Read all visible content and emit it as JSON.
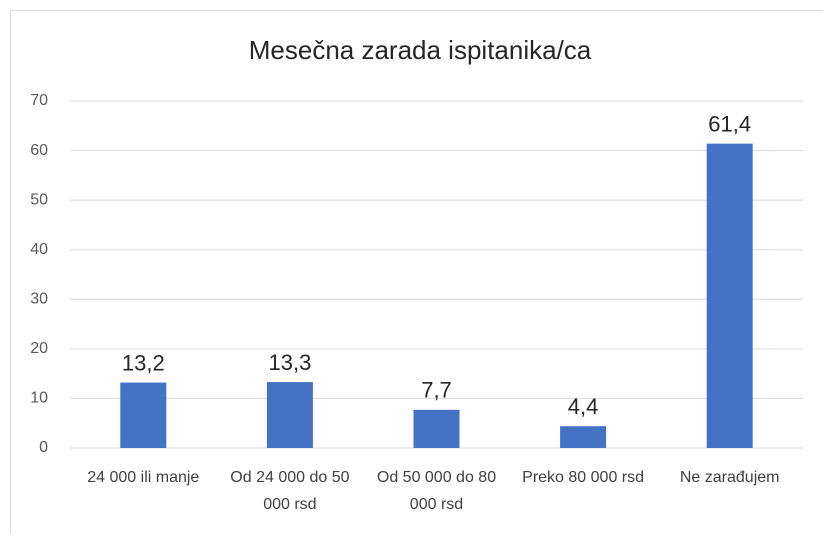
{
  "chart_data": {
    "type": "bar",
    "title": "Mesečna zarada ispitanika/ca",
    "categories": [
      "24 000 ili manje",
      "Od 24 000 do 50 000 rsd",
      "Od 50 000 do 80 000 rsd",
      "Preko 80 000 rsd",
      "Ne zarađujem"
    ],
    "values": [
      13.2,
      13.3,
      7.7,
      4.4,
      61.4
    ],
    "value_labels": [
      "13,2",
      "13,3",
      "7,7",
      "4,4",
      "61,4"
    ],
    "color": "#4472c4",
    "ylim": [
      0,
      70
    ],
    "yticks": [
      0,
      10,
      20,
      30,
      40,
      50,
      60,
      70
    ],
    "grid": true
  }
}
